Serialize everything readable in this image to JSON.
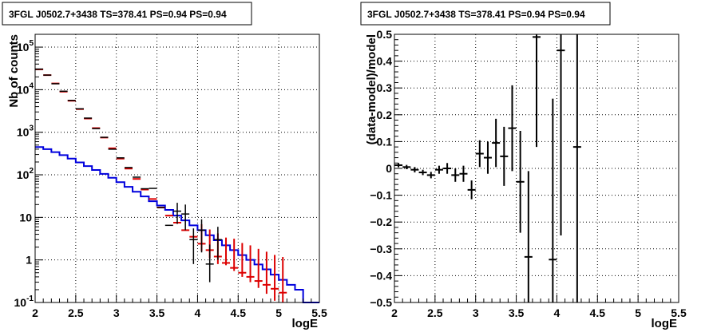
{
  "chart_data": [
    {
      "type": "histogram",
      "title": "3FGL J0502.7+3438 TS=378.41 PS=0.94 PS=0.94",
      "xlabel": "logE",
      "ylabel": "Nb of counts",
      "xlim": [
        2,
        5.5
      ],
      "ylim": [
        0.1,
        200000
      ],
      "yscale": "log",
      "grid": true,
      "xticks": [
        "2",
        "2.5",
        "3",
        "3.5",
        "4",
        "4.5",
        "5",
        "5.5"
      ],
      "yticks": [
        "10^-1",
        "1",
        "10",
        "10^2",
        "10^3",
        "10^4",
        "10^5"
      ],
      "bin_edges": [
        2.0,
        2.1,
        2.2,
        2.3,
        2.4,
        2.5,
        2.6,
        2.7,
        2.8,
        2.9,
        3.0,
        3.1,
        3.2,
        3.3,
        3.4,
        3.5,
        3.6,
        3.7,
        3.8,
        3.9,
        4.0,
        4.1,
        4.2,
        4.3,
        4.4,
        4.5,
        4.6,
        4.7,
        4.8,
        4.9,
        5.0,
        5.1,
        5.2,
        5.3,
        5.4,
        5.5
      ],
      "series": [
        {
          "kind": "step",
          "color": "#0000dd",
          "values": [
            450,
            400,
            340,
            290,
            240,
            195,
            160,
            130,
            105,
            85,
            67,
            52,
            40,
            31,
            24,
            19,
            15,
            11,
            8.5,
            6.5,
            5,
            3.8,
            2.9,
            2.2,
            1.7,
            1.3,
            1.0,
            0.78,
            0.6,
            0.45,
            0.34,
            0.26,
            0.2,
            0.1,
            0.1
          ]
        },
        {
          "kind": "markers",
          "color": "#dd0000",
          "x": [
            2.05,
            2.15,
            2.25,
            2.35,
            2.45,
            2.55,
            2.65,
            2.75,
            2.85,
            2.95,
            3.05,
            3.15,
            3.25,
            3.35,
            3.45,
            3.55,
            3.65,
            3.75,
            3.85,
            3.95,
            4.05,
            4.15,
            4.25,
            4.35,
            4.45,
            4.55,
            4.65,
            4.75,
            4.85,
            4.95,
            5.05
          ],
          "y": [
            30000,
            22000,
            14000,
            9000,
            5500,
            3500,
            2100,
            1250,
            750,
            420,
            240,
            140,
            80,
            45,
            27,
            17,
            11,
            7.5,
            5,
            3.5,
            2.4,
            1.7,
            1.2,
            0.85,
            0.65,
            0.5,
            0.4,
            0.32,
            0.26,
            0.21,
            0.17
          ],
          "err_low": [
            null,
            null,
            null,
            null,
            null,
            null,
            null,
            null,
            null,
            null,
            null,
            null,
            null,
            null,
            null,
            null,
            null,
            null,
            null,
            null,
            0.8,
            0.6,
            0.4,
            0.1,
            0.1,
            0.1,
            0.1,
            0.1,
            0.1,
            0.1,
            0.1
          ],
          "err_high": [
            null,
            null,
            null,
            null,
            null,
            null,
            null,
            null,
            null,
            null,
            null,
            null,
            null,
            null,
            null,
            null,
            null,
            null,
            null,
            null,
            4.5,
            3.5,
            3.0,
            2.5,
            2.5,
            2.0,
            1.8,
            1.5,
            1.3,
            1.1,
            1.0
          ]
        },
        {
          "kind": "errorbars",
          "color": "#000000",
          "x": [
            2.05,
            2.15,
            2.25,
            2.35,
            2.45,
            2.55,
            2.65,
            2.75,
            2.85,
            2.95,
            3.05,
            3.15,
            3.25,
            3.35,
            3.45,
            3.55,
            3.65,
            3.75,
            3.85,
            3.95,
            4.05,
            4.15,
            4.25
          ],
          "y": [
            30500,
            22000,
            13800,
            9200,
            5600,
            3550,
            2150,
            1220,
            760,
            400,
            250,
            148,
            88,
            47,
            48,
            17,
            6.5,
            14,
            12,
            3,
            5,
            0.8,
            3
          ],
          "err_low": [
            0,
            0,
            0,
            0,
            0,
            0,
            0,
            0,
            0,
            0,
            0,
            0,
            0,
            0,
            0,
            0,
            0,
            7,
            7,
            2.2,
            3.5,
            0.5,
            2.0
          ],
          "err_high": [
            0,
            0,
            0,
            0,
            0,
            0,
            0,
            0,
            0,
            0,
            0,
            0,
            0,
            0,
            0,
            0,
            0,
            8,
            8,
            2.5,
            4,
            1.5,
            3
          ]
        }
      ]
    },
    {
      "type": "scatter",
      "title": "3FGL J0502.7+3438 TS=378.41 PS=0.94 PS=0.94",
      "xlabel": "logE",
      "ylabel": "(data-model)/model",
      "xlim": [
        2,
        5.5
      ],
      "ylim": [
        -0.5,
        0.5
      ],
      "grid": true,
      "xticks": [
        "2",
        "2.5",
        "3",
        "3.5",
        "4",
        "4.5",
        "5",
        "5.5"
      ],
      "yticks": [
        "−0.5",
        "−0.4",
        "−0.3",
        "−0.2",
        "−0.1",
        "0",
        "0.1",
        "0.2",
        "0.3",
        "0.4",
        "0.5"
      ],
      "series": [
        {
          "color": "#000000",
          "x": [
            2.05,
            2.15,
            2.25,
            2.35,
            2.45,
            2.55,
            2.65,
            2.75,
            2.85,
            2.95,
            3.05,
            3.15,
            3.25,
            3.35,
            3.45,
            3.55,
            3.65,
            3.75,
            3.95,
            4.05,
            4.25
          ],
          "y": [
            0.012,
            0.005,
            -0.005,
            -0.015,
            -0.025,
            -0.005,
            0.0,
            -0.025,
            -0.02,
            -0.08,
            0.055,
            0.04,
            0.095,
            0.045,
            0.15,
            -0.05,
            -0.33,
            0.49,
            -0.34,
            0.44,
            0.08
          ],
          "err": [
            0.008,
            0.008,
            0.01,
            0.01,
            0.012,
            0.015,
            0.02,
            0.025,
            0.03,
            0.035,
            0.05,
            0.06,
            0.09,
            0.11,
            0.16,
            0.19,
            0.32,
            0.41,
            0.6,
            0.69,
            0.58
          ]
        }
      ]
    }
  ]
}
